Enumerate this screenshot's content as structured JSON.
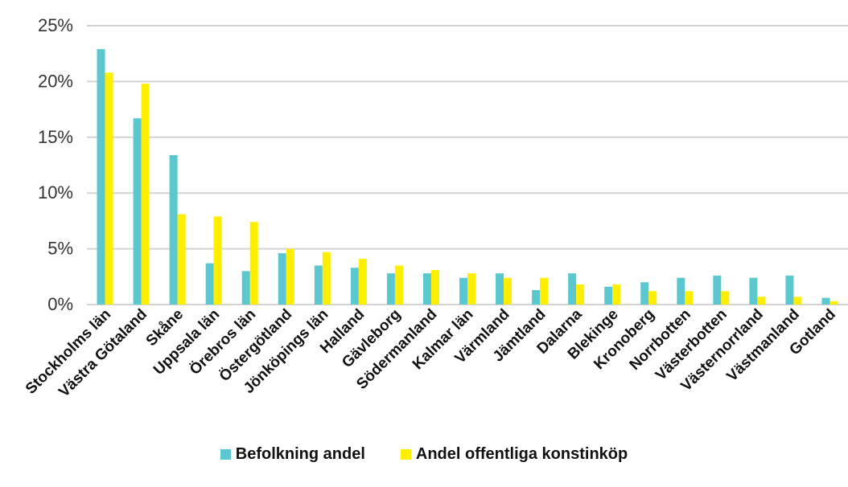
{
  "chart_data": {
    "type": "bar",
    "title": "",
    "xlabel": "",
    "ylabel": "",
    "ylim": [
      0,
      25
    ],
    "yticks": [
      "0%",
      "5%",
      "10%",
      "15%",
      "20%",
      "25%"
    ],
    "ytick_values": [
      0,
      5,
      10,
      15,
      20,
      25
    ],
    "grid": true,
    "legend_position": "bottom",
    "categories": [
      "Stockholms län",
      "Västra Götaland",
      "Skåne",
      "Uppsala län",
      "Örebros län",
      "Östergötland",
      "Jönköpings län",
      "Halland",
      "Gävleborg",
      "Södermanland",
      "Kalmar län",
      "Värmland",
      "Jämtland",
      "Dalarna",
      "Blekinge",
      "Kronoberg",
      "Norrbotten",
      "Västerbotten",
      "Västernorrland",
      "Västmanland",
      "Gotland"
    ],
    "series": [
      {
        "name": "Befolkning andel",
        "color": "#5BC8D0",
        "values": [
          22.9,
          16.7,
          13.4,
          3.7,
          3.0,
          4.6,
          3.5,
          3.3,
          2.8,
          2.8,
          2.4,
          2.8,
          1.3,
          2.8,
          1.6,
          2.0,
          2.4,
          2.6,
          2.4,
          2.6,
          0.6
        ]
      },
      {
        "name": "Andel offentliga konstinköp",
        "color": "#FFEE00",
        "values": [
          20.8,
          19.8,
          8.1,
          7.9,
          7.4,
          5.0,
          4.7,
          4.1,
          3.5,
          3.1,
          2.8,
          2.4,
          2.4,
          1.8,
          1.8,
          1.2,
          1.2,
          1.2,
          0.7,
          0.7,
          0.3
        ]
      }
    ]
  }
}
